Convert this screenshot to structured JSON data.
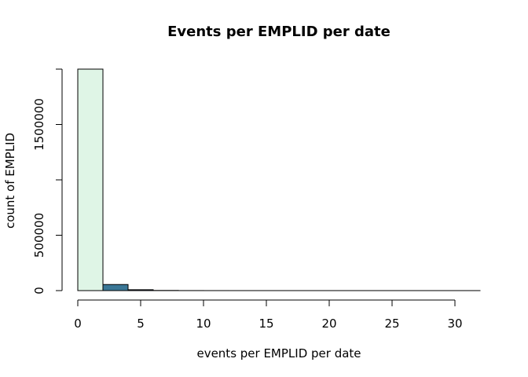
{
  "chart_data": {
    "type": "bar",
    "title": "Events per EMPLID per date",
    "xlabel": "events per EMPLID per date",
    "ylabel": "count of EMPLID",
    "xlim": [
      0,
      32
    ],
    "ylim": [
      0,
      2000000
    ],
    "x_ticks": [
      0,
      5,
      10,
      15,
      20,
      25,
      30
    ],
    "y_ticks": [
      0,
      500000,
      1000000,
      1500000,
      2000000
    ],
    "y_tick_labels": [
      "0",
      "500000",
      "",
      "1500000",
      ""
    ],
    "grid": false,
    "bins": [
      {
        "x0": 0,
        "x1": 2,
        "value": 2000000,
        "color": "#dff5e6"
      },
      {
        "x0": 2,
        "x1": 4,
        "value": 55000,
        "color": "#3a7796"
      },
      {
        "x0": 4,
        "x1": 6,
        "value": 8000,
        "color": "#2c3d63"
      },
      {
        "x0": 6,
        "x1": 8,
        "value": 1500,
        "color": "#1f1f3a"
      },
      {
        "x0": 8,
        "x1": 10,
        "value": 400,
        "color": "#1a1a2e"
      },
      {
        "x0": 10,
        "x1": 12,
        "value": 150,
        "color": "#1a1a2e"
      },
      {
        "x0": 12,
        "x1": 14,
        "value": 60,
        "color": "#1a1a2e"
      },
      {
        "x0": 14,
        "x1": 16,
        "value": 30,
        "color": "#1a1a2e"
      },
      {
        "x0": 16,
        "x1": 18,
        "value": 15,
        "color": "#1a1a2e"
      },
      {
        "x0": 18,
        "x1": 20,
        "value": 8,
        "color": "#1a1a2e"
      },
      {
        "x0": 20,
        "x1": 22,
        "value": 5,
        "color": "#1a1a2e"
      },
      {
        "x0": 22,
        "x1": 24,
        "value": 3,
        "color": "#1a1a2e"
      },
      {
        "x0": 24,
        "x1": 26,
        "value": 2,
        "color": "#1a1a2e"
      },
      {
        "x0": 26,
        "x1": 28,
        "value": 1,
        "color": "#1a1a2e"
      },
      {
        "x0": 28,
        "x1": 30,
        "value": 1,
        "color": "#1a1a2e"
      },
      {
        "x0": 30,
        "x1": 32,
        "value": 1,
        "color": "#1a1a2e"
      }
    ]
  }
}
